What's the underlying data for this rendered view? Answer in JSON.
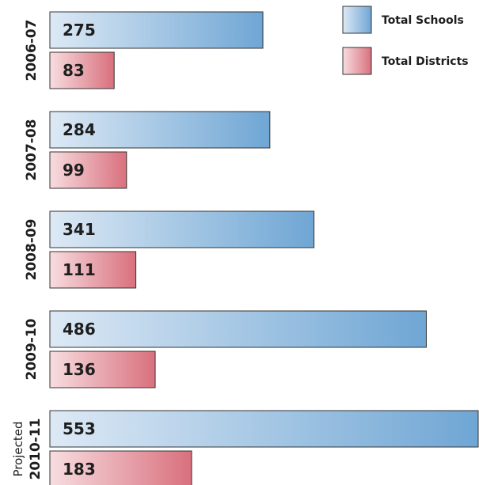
{
  "chart_data": {
    "type": "bar",
    "orientation": "horizontal",
    "categories": [
      "2006-07",
      "2007-08",
      "2008-09",
      "2009-10",
      "2010-11"
    ],
    "category_prefixes": [
      "",
      "",
      "",
      "",
      "Projected"
    ],
    "series": [
      {
        "name": "Total Schools",
        "values": [
          275,
          284,
          341,
          486,
          553
        ],
        "color": "#6fa6d4",
        "color_light": "#dde9f5"
      },
      {
        "name": "Total Districts",
        "values": [
          83,
          99,
          111,
          136,
          183
        ],
        "color": "#d9707d",
        "color_light": "#f7dde0"
      }
    ],
    "xlim": [
      0,
      553
    ],
    "grid": false,
    "legend": "top-right",
    "data_labels": true
  }
}
